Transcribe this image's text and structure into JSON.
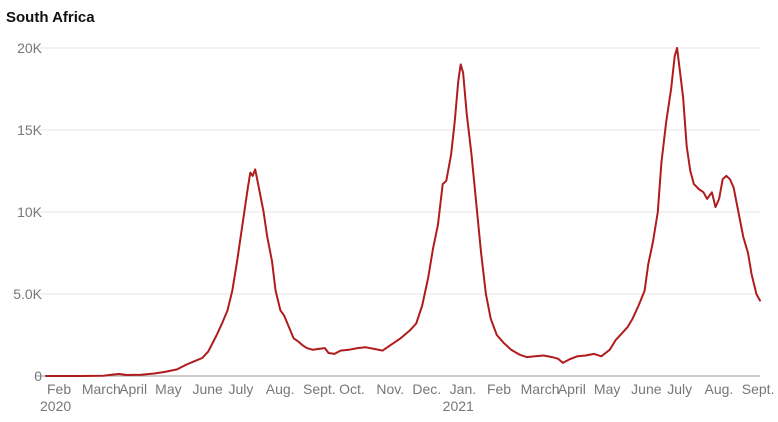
{
  "chart": {
    "title": "South Africa"
  },
  "chart_data": {
    "type": "line",
    "title": "South Africa",
    "xlabel": "",
    "ylabel": "",
    "x_range": [
      "2020-02-01",
      "2021-09-17"
    ],
    "ylim": [
      0,
      20000
    ],
    "grid": true,
    "legend": "none",
    "y_ticks": [
      {
        "value": 0,
        "label": "0"
      },
      {
        "value": 5000,
        "label": "5.0K"
      },
      {
        "value": 10000,
        "label": "10K"
      },
      {
        "value": 15000,
        "label": "15K"
      },
      {
        "value": 20000,
        "label": "20K"
      }
    ],
    "x_ticks": [
      {
        "date": "2020-02-01",
        "label": "Feb",
        "sublabel": "2020"
      },
      {
        "date": "2020-03-01",
        "label": "March"
      },
      {
        "date": "2020-04-01",
        "label": "April"
      },
      {
        "date": "2020-05-01",
        "label": "May"
      },
      {
        "date": "2020-06-01",
        "label": "June"
      },
      {
        "date": "2020-07-01",
        "label": "July"
      },
      {
        "date": "2020-08-01",
        "label": "Aug."
      },
      {
        "date": "2020-09-01",
        "label": "Sept."
      },
      {
        "date": "2020-10-01",
        "label": "Oct."
      },
      {
        "date": "2020-11-01",
        "label": "Nov."
      },
      {
        "date": "2020-12-01",
        "label": "Dec."
      },
      {
        "date": "2021-01-01",
        "label": "Jan.",
        "sublabel": "2021"
      },
      {
        "date": "2021-02-01",
        "label": "Feb"
      },
      {
        "date": "2021-03-01",
        "label": "March"
      },
      {
        "date": "2021-04-01",
        "label": "April"
      },
      {
        "date": "2021-05-01",
        "label": "May"
      },
      {
        "date": "2021-06-01",
        "label": "June"
      },
      {
        "date": "2021-07-01",
        "label": "July"
      },
      {
        "date": "2021-08-01",
        "label": "Aug."
      },
      {
        "date": "2021-09-01",
        "label": "Sept."
      }
    ],
    "series": [
      {
        "color": "#b01c1c",
        "points": [
          [
            "2020-02-01",
            0
          ],
          [
            "2020-03-01",
            0
          ],
          [
            "2020-03-20",
            20
          ],
          [
            "2020-03-28",
            90
          ],
          [
            "2020-04-02",
            120
          ],
          [
            "2020-04-08",
            60
          ],
          [
            "2020-04-20",
            80
          ],
          [
            "2020-05-01",
            150
          ],
          [
            "2020-05-10",
            250
          ],
          [
            "2020-05-20",
            400
          ],
          [
            "2020-05-28",
            700
          ],
          [
            "2020-06-05",
            950
          ],
          [
            "2020-06-10",
            1100
          ],
          [
            "2020-06-15",
            1500
          ],
          [
            "2020-06-22",
            2500
          ],
          [
            "2020-06-27",
            3300
          ],
          [
            "2020-07-01",
            4000
          ],
          [
            "2020-07-05",
            5200
          ],
          [
            "2020-07-09",
            7000
          ],
          [
            "2020-07-14",
            9500
          ],
          [
            "2020-07-18",
            11500
          ],
          [
            "2020-07-20",
            12400
          ],
          [
            "2020-07-22",
            12200
          ],
          [
            "2020-07-24",
            12600
          ],
          [
            "2020-07-27",
            11500
          ],
          [
            "2020-07-31",
            10000
          ],
          [
            "2020-08-03",
            8500
          ],
          [
            "2020-08-07",
            7000
          ],
          [
            "2020-08-10",
            5200
          ],
          [
            "2020-08-14",
            4000
          ],
          [
            "2020-08-17",
            3700
          ],
          [
            "2020-08-21",
            3000
          ],
          [
            "2020-08-25",
            2300
          ],
          [
            "2020-08-29",
            2100
          ],
          [
            "2020-09-01",
            1900
          ],
          [
            "2020-09-05",
            1700
          ],
          [
            "2020-09-10",
            1600
          ],
          [
            "2020-09-15",
            1650
          ],
          [
            "2020-09-20",
            1700
          ],
          [
            "2020-09-23",
            1400
          ],
          [
            "2020-09-28",
            1350
          ],
          [
            "2020-10-03",
            1550
          ],
          [
            "2020-10-10",
            1600
          ],
          [
            "2020-10-17",
            1700
          ],
          [
            "2020-10-24",
            1750
          ],
          [
            "2020-10-31",
            1650
          ],
          [
            "2020-11-07",
            1550
          ],
          [
            "2020-11-14",
            1900
          ],
          [
            "2020-11-22",
            2300
          ],
          [
            "2020-11-30",
            2800
          ],
          [
            "2020-12-05",
            3200
          ],
          [
            "2020-12-10",
            4300
          ],
          [
            "2020-12-15",
            6000
          ],
          [
            "2020-12-19",
            7800
          ],
          [
            "2020-12-23",
            9200
          ],
          [
            "2020-12-27",
            11700
          ],
          [
            "2020-12-30",
            11900
          ],
          [
            "2021-01-03",
            13500
          ],
          [
            "2021-01-06",
            15500
          ],
          [
            "2021-01-09",
            18000
          ],
          [
            "2021-01-11",
            19000
          ],
          [
            "2021-01-13",
            18500
          ],
          [
            "2021-01-16",
            16000
          ],
          [
            "2021-01-20",
            13500
          ],
          [
            "2021-01-24",
            10500
          ],
          [
            "2021-01-28",
            7500
          ],
          [
            "2021-02-01",
            5000
          ],
          [
            "2021-02-05",
            3500
          ],
          [
            "2021-02-10",
            2500
          ],
          [
            "2021-02-16",
            2000
          ],
          [
            "2021-02-22",
            1600
          ],
          [
            "2021-03-01",
            1300
          ],
          [
            "2021-03-07",
            1150
          ],
          [
            "2021-03-14",
            1200
          ],
          [
            "2021-03-21",
            1250
          ],
          [
            "2021-03-28",
            1150
          ],
          [
            "2021-04-02",
            1050
          ],
          [
            "2021-04-06",
            800
          ],
          [
            "2021-04-11",
            1000
          ],
          [
            "2021-04-18",
            1200
          ],
          [
            "2021-04-25",
            1250
          ],
          [
            "2021-05-02",
            1350
          ],
          [
            "2021-05-08",
            1200
          ],
          [
            "2021-05-15",
            1600
          ],
          [
            "2021-05-20",
            2200
          ],
          [
            "2021-05-25",
            2600
          ],
          [
            "2021-05-30",
            3000
          ],
          [
            "2021-06-03",
            3500
          ],
          [
            "2021-06-08",
            4300
          ],
          [
            "2021-06-13",
            5200
          ],
          [
            "2021-06-16",
            6800
          ],
          [
            "2021-06-20",
            8200
          ],
          [
            "2021-06-24",
            10000
          ],
          [
            "2021-06-27",
            13000
          ],
          [
            "2021-07-01",
            15500
          ],
          [
            "2021-07-05",
            17500
          ],
          [
            "2021-07-08",
            19500
          ],
          [
            "2021-07-10",
            20000
          ],
          [
            "2021-07-12",
            18800
          ],
          [
            "2021-07-15",
            17000
          ],
          [
            "2021-07-18",
            14000
          ],
          [
            "2021-07-21",
            12500
          ],
          [
            "2021-07-24",
            11700
          ],
          [
            "2021-07-28",
            11400
          ],
          [
            "2021-08-01",
            11200
          ],
          [
            "2021-08-04",
            10800
          ],
          [
            "2021-08-08",
            11200
          ],
          [
            "2021-08-11",
            10300
          ],
          [
            "2021-08-14",
            10800
          ],
          [
            "2021-08-17",
            12000
          ],
          [
            "2021-08-20",
            12200
          ],
          [
            "2021-08-23",
            12000
          ],
          [
            "2021-08-26",
            11500
          ],
          [
            "2021-08-30",
            10000
          ],
          [
            "2021-09-03",
            8500
          ],
          [
            "2021-09-07",
            7500
          ],
          [
            "2021-09-10",
            6200
          ],
          [
            "2021-09-14",
            5000
          ],
          [
            "2021-09-17",
            4600
          ]
        ]
      }
    ]
  }
}
